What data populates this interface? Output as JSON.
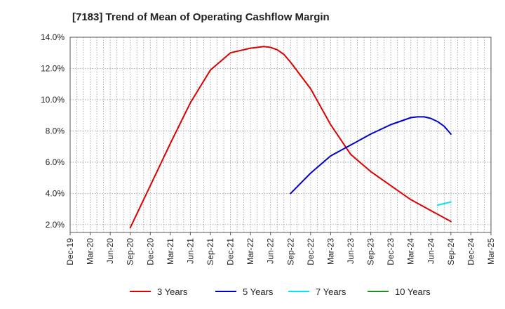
{
  "chart_data": {
    "type": "line",
    "title": "[7183]  Trend of Mean of Operating Cashflow Margin",
    "xlabel": "",
    "ylabel": "",
    "x_ticks": [
      "Dec-19",
      "Mar-20",
      "Jun-20",
      "Sep-20",
      "Dec-20",
      "Mar-21",
      "Jun-21",
      "Sep-21",
      "Dec-21",
      "Mar-22",
      "Jun-22",
      "Sep-22",
      "Dec-22",
      "Mar-23",
      "Jun-23",
      "Sep-23",
      "Dec-23",
      "Mar-24",
      "Jun-24",
      "Sep-24",
      "Dec-24",
      "Mar-25"
    ],
    "y_ticks": [
      "2.0%",
      "4.0%",
      "6.0%",
      "8.0%",
      "10.0%",
      "12.0%",
      "14.0%"
    ],
    "ylim": [
      1.5,
      14.0
    ],
    "grid": true,
    "legend_position": "bottom",
    "series": [
      {
        "name": "3 Years",
        "color": "#dd0000",
        "x": [
          "Sep-20",
          "Dec-20",
          "Mar-21",
          "Jun-21",
          "Sep-21",
          "Dec-21",
          "Mar-22",
          "Apr-22",
          "May-22",
          "Jun-22",
          "Jul-22",
          "Aug-22",
          "Sep-22",
          "Dec-22",
          "Mar-23",
          "Jun-23",
          "Sep-23",
          "Dec-23",
          "Mar-24",
          "Jun-24",
          "Sep-24"
        ],
        "values": [
          1.8,
          4.5,
          7.2,
          9.8,
          11.9,
          13.0,
          13.3,
          13.35,
          13.4,
          13.35,
          13.2,
          12.9,
          12.4,
          10.7,
          8.4,
          6.5,
          5.4,
          4.5,
          3.6,
          2.9,
          2.2
        ]
      },
      {
        "name": "5 Years",
        "color": "#0000cc",
        "x": [
          "Sep-22",
          "Dec-22",
          "Mar-23",
          "Jun-23",
          "Sep-23",
          "Dec-23",
          "Mar-24",
          "Apr-24",
          "May-24",
          "Jun-24",
          "Jul-24",
          "Aug-24",
          "Sep-24"
        ],
        "values": [
          4.0,
          5.3,
          6.4,
          7.1,
          7.8,
          8.4,
          8.85,
          8.9,
          8.9,
          8.8,
          8.6,
          8.3,
          7.8
        ]
      },
      {
        "name": "7 Years",
        "color": "#00e5ee",
        "x": [
          "Jul-24",
          "Aug-24",
          "Sep-24"
        ],
        "values": [
          3.25,
          3.35,
          3.45
        ]
      },
      {
        "name": "10 Years",
        "color": "#228b22",
        "x": [],
        "values": []
      }
    ]
  }
}
